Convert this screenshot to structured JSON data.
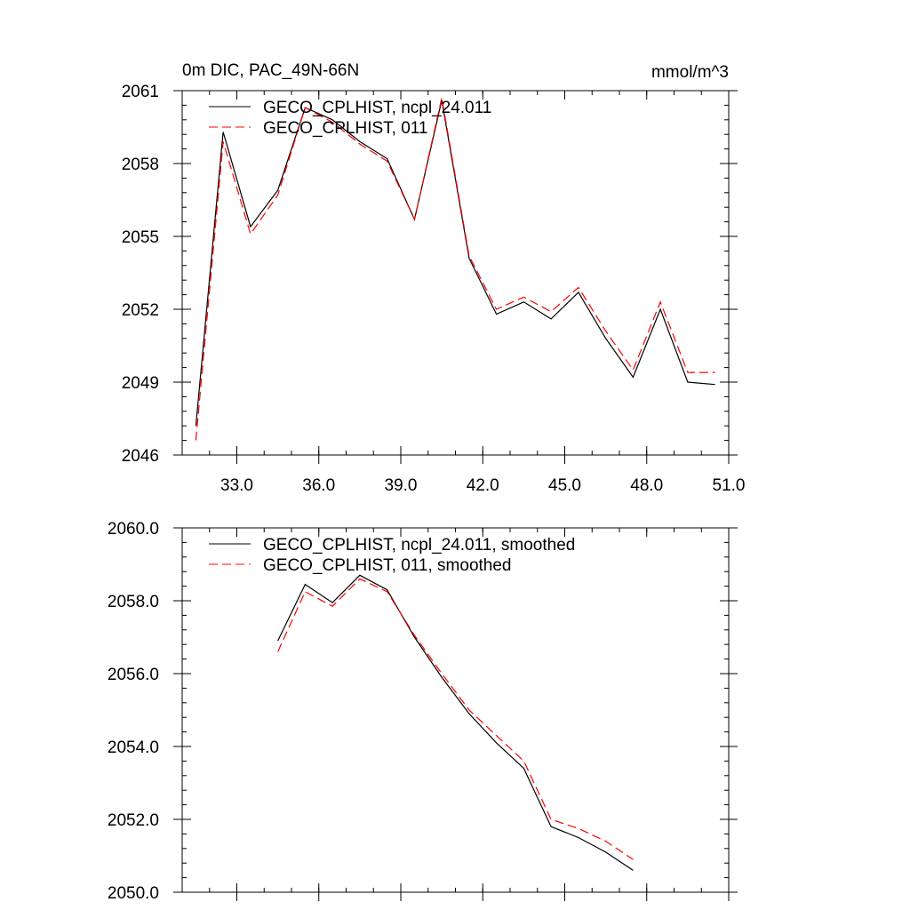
{
  "chart_data": [
    {
      "type": "line",
      "title": "0m DIC, PAC_49N-66N",
      "units": "mmol/m^3",
      "xlabel": "",
      "ylabel": "",
      "xlim": [
        31.0,
        51.0
      ],
      "ylim": [
        2046,
        2061
      ],
      "x_ticks": [
        33.0,
        36.0,
        39.0,
        42.0,
        45.0,
        48.0,
        51.0
      ],
      "x_tick_labels": [
        "33.0",
        "36.0",
        "39.0",
        "42.0",
        "45.0",
        "48.0",
        "51.0"
      ],
      "y_ticks": [
        2046,
        2049,
        2052,
        2055,
        2058,
        2061
      ],
      "y_tick_labels": [
        "2046",
        "2049",
        "2052",
        "2055",
        "2058",
        "2061"
      ],
      "grid": false,
      "legend_position": "top-left",
      "series": [
        {
          "name": "GECO_CPLHIST, ncpl_24.011",
          "color": "#000000",
          "dash": "solid",
          "x": [
            31.5,
            32.5,
            33.5,
            34.5,
            35.5,
            36.5,
            37.5,
            38.5,
            39.5,
            40.5,
            41.5,
            42.5,
            43.5,
            44.5,
            45.5,
            46.5,
            47.5,
            48.5,
            49.5,
            50.5
          ],
          "values": [
            2047.2,
            2059.3,
            2055.4,
            2056.9,
            2060.3,
            2059.8,
            2058.9,
            2058.2,
            2055.7,
            2060.6,
            2054.1,
            2051.8,
            2052.3,
            2051.6,
            2052.7,
            2050.8,
            2049.2,
            2052.0,
            2049.0,
            2048.9
          ]
        },
        {
          "name": "GECO_CPLHIST, 011",
          "color": "#ff0000",
          "dash": "dashed",
          "x": [
            31.5,
            32.5,
            33.5,
            34.5,
            35.5,
            36.5,
            37.5,
            38.5,
            39.5,
            40.5,
            41.5,
            42.5,
            43.5,
            44.5,
            45.5,
            46.5,
            47.5,
            48.5,
            49.5,
            50.5
          ],
          "values": [
            2046.6,
            2058.9,
            2055.1,
            2056.7,
            2060.3,
            2059.7,
            2058.8,
            2058.1,
            2055.7,
            2060.7,
            2054.2,
            2052.0,
            2052.5,
            2051.9,
            2052.9,
            2051.1,
            2049.5,
            2052.3,
            2049.4,
            2049.4
          ]
        }
      ]
    },
    {
      "type": "line",
      "title": "",
      "xlabel": "",
      "ylabel": "",
      "xlim": [
        31.0,
        51.0
      ],
      "ylim": [
        2050.0,
        2060.0
      ],
      "x_ticks": [
        33.0,
        36.0,
        39.0,
        42.0,
        45.0,
        48.0,
        51.0
      ],
      "x_tick_labels": [],
      "y_ticks": [
        2050.0,
        2052.0,
        2054.0,
        2056.0,
        2058.0,
        2060.0
      ],
      "y_tick_labels": [
        "2050.0",
        "2052.0",
        "2054.0",
        "2056.0",
        "2058.0",
        "2060.0"
      ],
      "grid": false,
      "legend_position": "top-left",
      "series": [
        {
          "name": "GECO_CPLHIST, ncpl_24.011, smoothed",
          "color": "#000000",
          "dash": "solid",
          "x": [
            34.5,
            35.5,
            36.5,
            37.5,
            38.5,
            39.5,
            40.5,
            41.5,
            42.5,
            43.5,
            44.5,
            45.5,
            46.5,
            47.5
          ],
          "values": [
            2056.9,
            2058.45,
            2057.95,
            2058.7,
            2058.3,
            2057.0,
            2055.9,
            2054.9,
            2054.1,
            2053.4,
            2051.8,
            2051.5,
            2051.1,
            2050.6
          ]
        },
        {
          "name": "GECO_CPLHIST, 011, smoothed",
          "color": "#ff0000",
          "dash": "dashed",
          "x": [
            34.5,
            35.5,
            36.5,
            37.5,
            38.5,
            39.5,
            40.5,
            41.5,
            42.5,
            43.5,
            44.5,
            45.5,
            46.5,
            47.5
          ],
          "values": [
            2056.6,
            2058.25,
            2057.85,
            2058.6,
            2058.25,
            2057.05,
            2056.0,
            2055.0,
            2054.3,
            2053.6,
            2052.0,
            2051.75,
            2051.4,
            2050.9
          ]
        }
      ]
    }
  ]
}
